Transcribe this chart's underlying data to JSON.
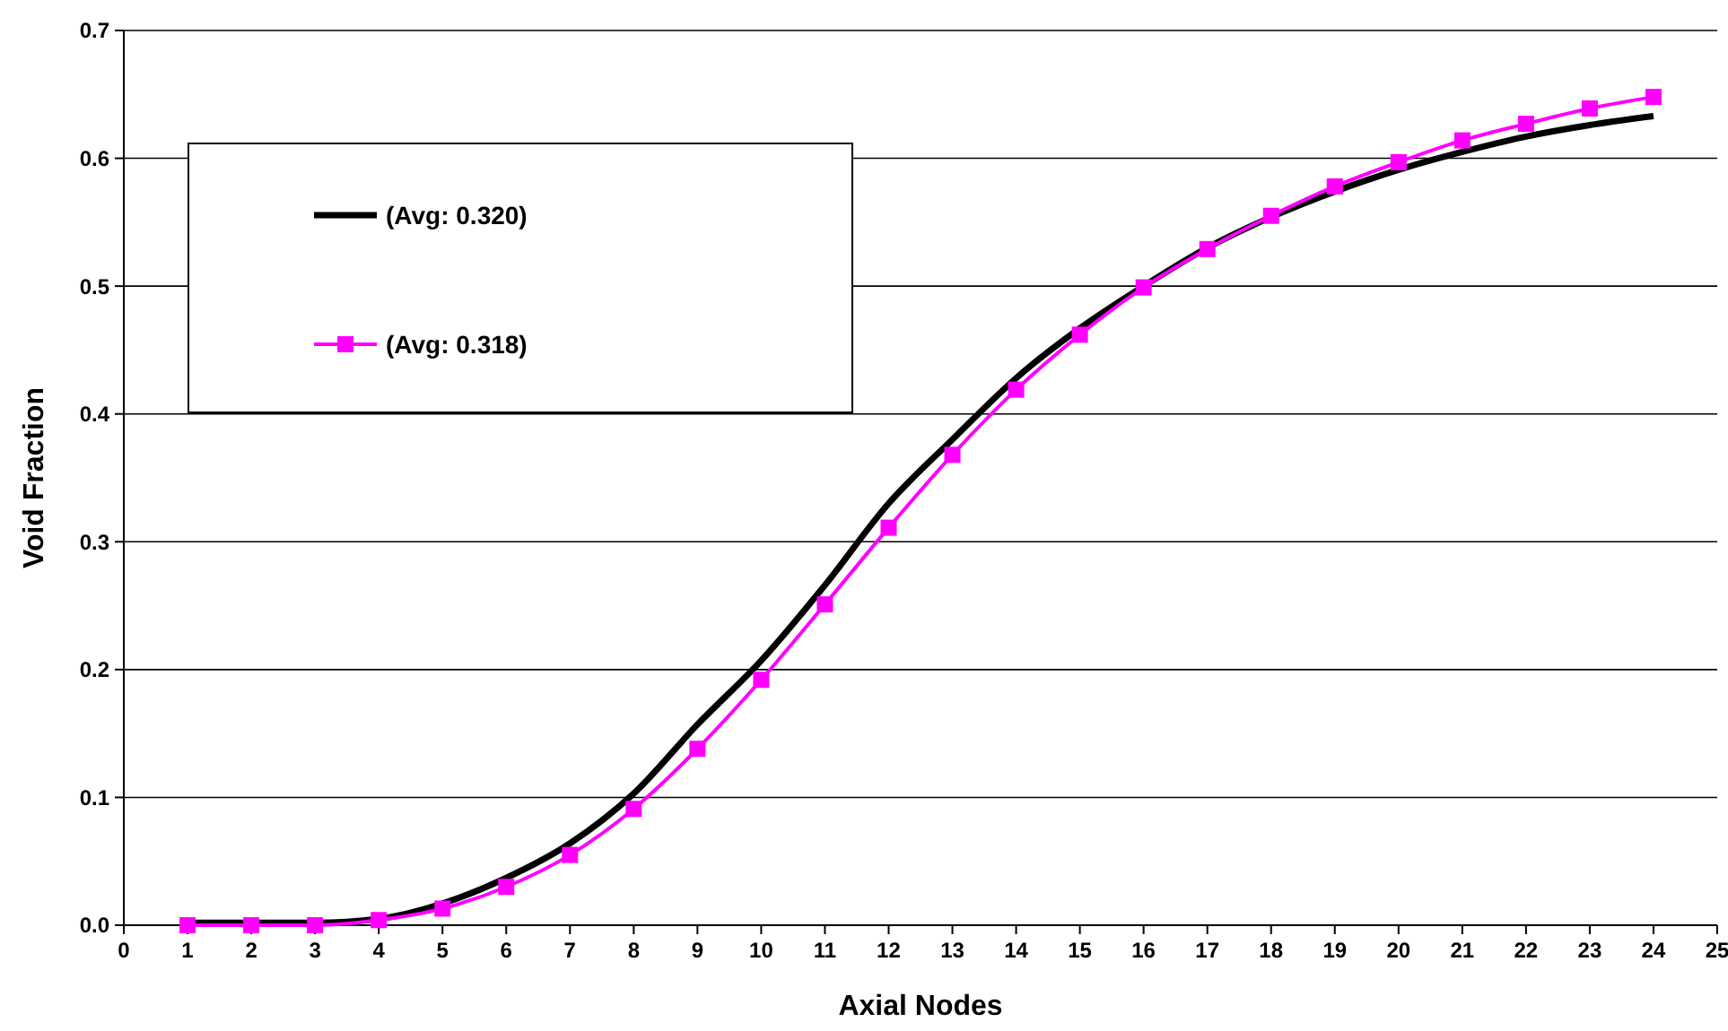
{
  "chart_data": {
    "type": "line",
    "xlabel": "Axial Nodes",
    "ylabel": "Void Fraction",
    "x": [
      1,
      2,
      3,
      4,
      5,
      6,
      7,
      8,
      9,
      10,
      11,
      12,
      13,
      14,
      15,
      16,
      17,
      18,
      19,
      20,
      21,
      22,
      23,
      24
    ],
    "series": [
      {
        "name": "(Avg: 0.320)",
        "color": "#000000",
        "marker": "none",
        "values": [
          0.002,
          0.002,
          0.002,
          0.005,
          0.017,
          0.037,
          0.064,
          0.103,
          0.157,
          0.207,
          0.266,
          0.33,
          0.38,
          0.428,
          0.467,
          0.5,
          0.53,
          0.554,
          0.574,
          0.591,
          0.605,
          0.617,
          0.626,
          0.633
        ]
      },
      {
        "name": "(Avg: 0.318)",
        "color": "#ff00ff",
        "marker": "square",
        "values": [
          0.0,
          0.0,
          0.0,
          0.004,
          0.013,
          0.03,
          0.055,
          0.091,
          0.138,
          0.192,
          0.251,
          0.311,
          0.368,
          0.419,
          0.462,
          0.499,
          0.529,
          0.555,
          0.578,
          0.597,
          0.614,
          0.627,
          0.639,
          0.648
        ]
      }
    ],
    "xlim": [
      0,
      25
    ],
    "xticks": [
      0,
      1,
      2,
      3,
      4,
      5,
      6,
      7,
      8,
      9,
      10,
      11,
      12,
      13,
      14,
      15,
      16,
      17,
      18,
      19,
      20,
      21,
      22,
      23,
      24,
      25
    ],
    "ylim": [
      0,
      0.7
    ],
    "yticks": [
      {
        "value": 0,
        "label": "0.0"
      },
      {
        "value": 0.1,
        "label": "0.1"
      },
      {
        "value": 0.2,
        "label": "0.2"
      },
      {
        "value": 0.3,
        "label": "0.3"
      },
      {
        "value": 0.4,
        "label": "0.4"
      },
      {
        "value": 0.5,
        "label": "0.5"
      },
      {
        "value": 0.6,
        "label": "0.6"
      },
      {
        "value": 0.7,
        "label": "0.7"
      }
    ],
    "grid": "y",
    "legend": "top left",
    "line_style": "solid"
  }
}
